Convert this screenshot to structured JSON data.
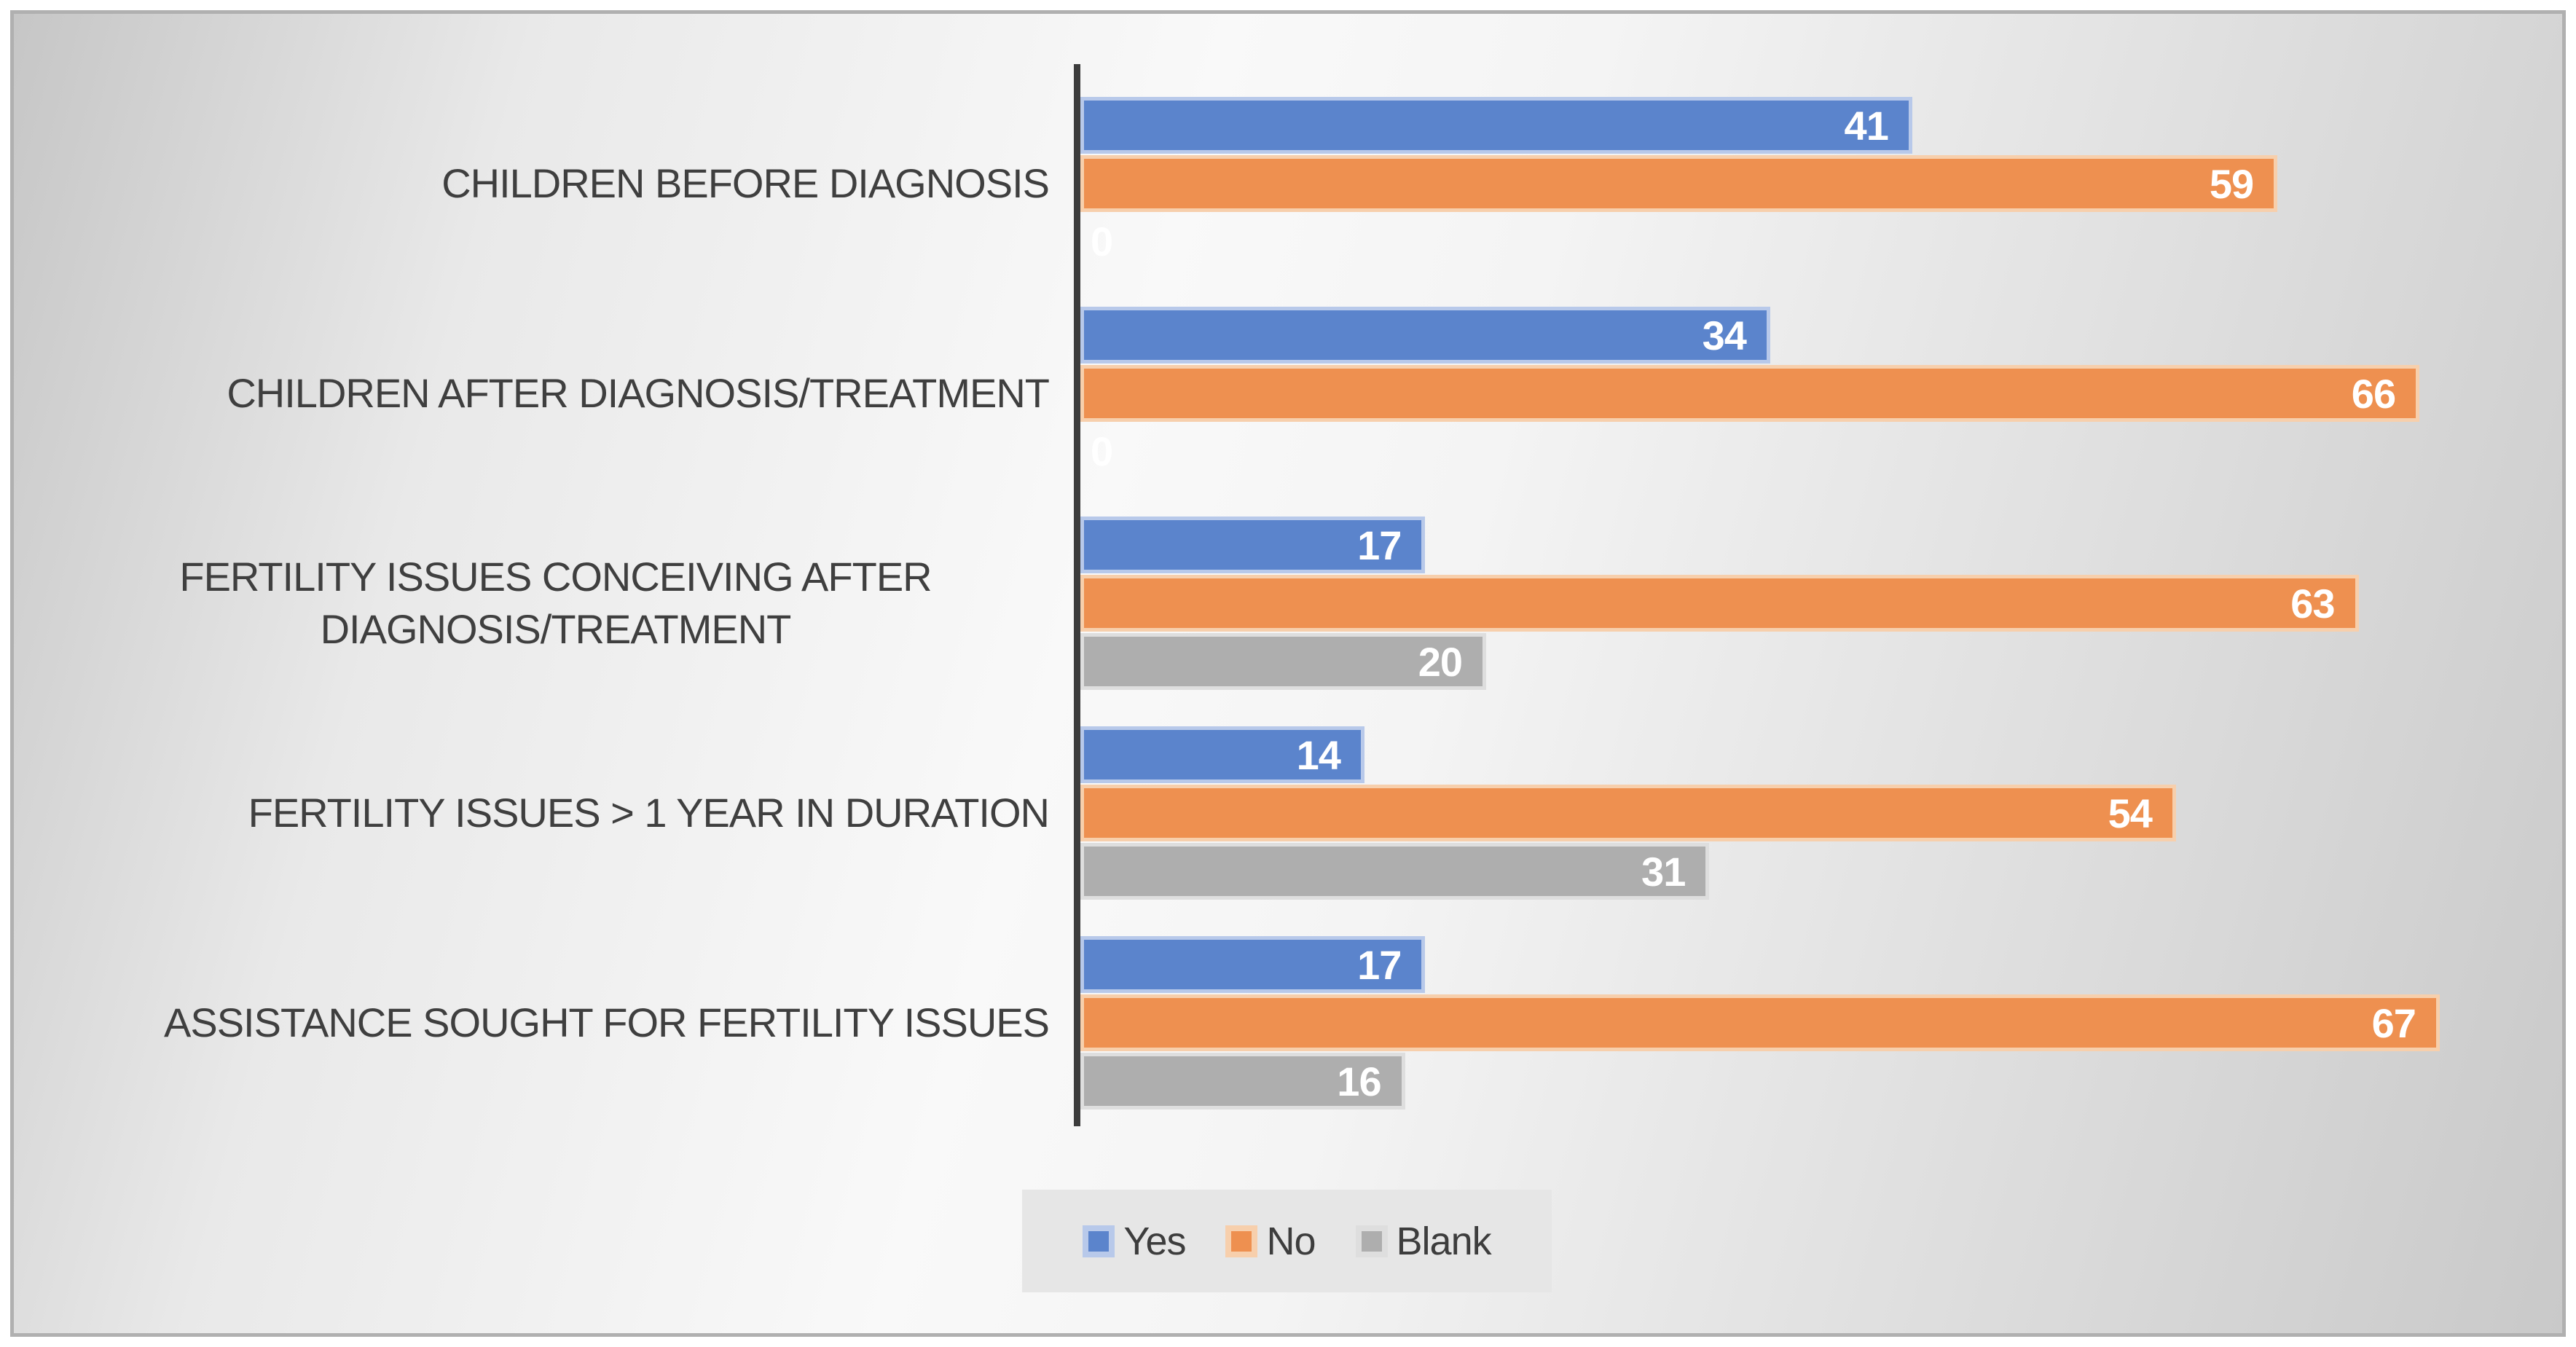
{
  "chart_data": {
    "type": "bar",
    "orientation": "horizontal",
    "categories": [
      "CHILDREN BEFORE DIAGNOSIS",
      "CHILDREN AFTER DIAGNOSIS/TREATMENT",
      "FERTILITY ISSUES CONCEIVING AFTER DIAGNOSIS/TREATMENT",
      "FERTILITY ISSUES > 1 YEAR IN DURATION",
      "ASSISTANCE SOUGHT FOR FERTILITY ISSUES"
    ],
    "series": [
      {
        "name": "Yes",
        "color": "#5B84CC",
        "border_color": "#B8C9EA",
        "values": [
          41,
          34,
          17,
          14,
          17
        ]
      },
      {
        "name": "No",
        "color": "#EE9050",
        "border_color": "#F7CFAC",
        "values": [
          59,
          66,
          63,
          54,
          67
        ]
      },
      {
        "name": "Blank",
        "color": "#AEAEAE",
        "border_color": "#DEDEDE",
        "values": [
          0,
          0,
          20,
          31,
          16
        ]
      }
    ],
    "xlim": [
      0,
      73
    ],
    "grid": false,
    "title": "",
    "xlabel": "",
    "ylabel": "",
    "legend_position": "bottom-center",
    "data_labels": {
      "position": "inside-end",
      "color": "#FFFFFF",
      "zero_label_position": "outside-left"
    },
    "axis_line_color": "#3C3C3C",
    "category_label_color": "#3F3F3F"
  }
}
